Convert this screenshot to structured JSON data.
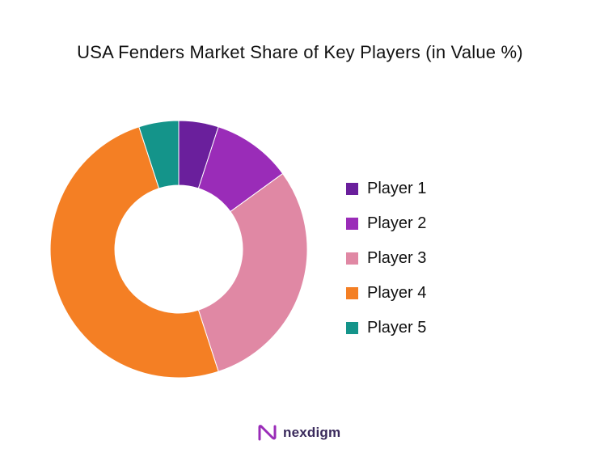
{
  "chart_data": {
    "type": "pie",
    "title": "USA Fenders Market Share of Key Players (in Value %)",
    "donut": true,
    "legend_position": "right",
    "series": [
      {
        "name": "Player 1",
        "value": 5,
        "color": "#6a1f9c"
      },
      {
        "name": "Player 2",
        "value": 10,
        "color": "#9a2cb8"
      },
      {
        "name": "Player 3",
        "value": 30,
        "color": "#e088a4"
      },
      {
        "name": "Player 4",
        "value": 50,
        "color": "#f47f24"
      },
      {
        "name": "Player 5",
        "value": 5,
        "color": "#14948a"
      }
    ]
  },
  "brand": {
    "name": "nexdigm",
    "color": "#3a2a5c",
    "accent": "#9a2cb8"
  }
}
